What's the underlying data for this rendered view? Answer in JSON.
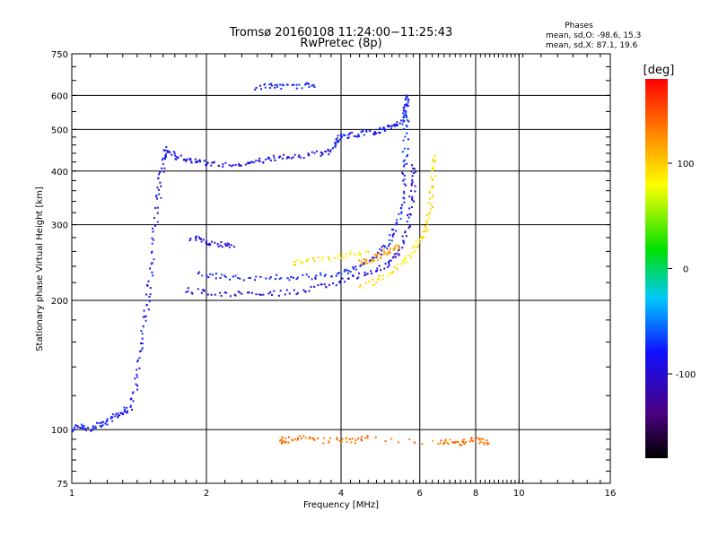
{
  "chart_data": {
    "type": "scatter",
    "title": "Tromsø 20160108 11:24:00−11:25:43",
    "subtitle": "RwPretec (8p)",
    "xlabel": "Frequency [MHz]",
    "ylabel": "Stationary phase Virtual Height [km]",
    "x_scale": "log",
    "y_scale": "log",
    "xlim": [
      1,
      16
    ],
    "ylim": [
      75,
      750
    ],
    "x_ticks": [
      1,
      2,
      4,
      6,
      8,
      10,
      16
    ],
    "x_tick_labels": [
      "1",
      "2",
      "4",
      "6",
      "8",
      "10",
      "16"
    ],
    "y_ticks": [
      75,
      100,
      200,
      300,
      400,
      500,
      600,
      750
    ],
    "y_tick_labels": [
      "75",
      "100",
      "200",
      "300",
      "400",
      "500",
      "600",
      "750"
    ],
    "grid": true,
    "phase_stats": {
      "heading": "Phases",
      "line_o": "mean, sd,O:  -98.6, 15.3",
      "line_x": "mean, sd,X:   87.1, 19.6"
    },
    "colorbar": {
      "unit_label": "[deg]",
      "range": [
        -180,
        180
      ],
      "tick_values": [
        100,
        0,
        -100
      ],
      "tick_labels": [
        "100",
        "0",
        "-100"
      ],
      "colormap": "rainbow (black → violet → blue → cyan → green → yellow → orange → red)"
    },
    "traces": [
      {
        "name": "",
        "phase": -100,
        "points": [
          [
            1.0,
            100
          ],
          [
            1.05,
            102
          ],
          [
            1.1,
            100
          ],
          [
            1.15,
            103
          ],
          [
            1.2,
            104
          ],
          [
            1.25,
            108
          ],
          [
            1.3,
            110
          ],
          [
            1.35,
            112
          ],
          [
            1.4,
            128
          ],
          [
            1.42,
            150
          ],
          [
            1.45,
            175
          ],
          [
            1.48,
            200
          ],
          [
            1.5,
            230
          ],
          [
            1.53,
            280
          ],
          [
            1.56,
            340
          ],
          [
            1.58,
            380
          ],
          [
            1.6,
            420
          ],
          [
            1.62,
            450
          ]
        ]
      },
      {
        "name": "",
        "phase": -108,
        "points": [
          [
            1.62,
            450
          ],
          [
            1.7,
            435
          ],
          [
            1.8,
            425
          ],
          [
            1.9,
            420
          ],
          [
            2.0,
            418
          ],
          [
            2.2,
            415
          ],
          [
            2.4,
            418
          ],
          [
            2.6,
            422
          ],
          [
            2.8,
            428
          ],
          [
            3.0,
            432
          ],
          [
            3.3,
            435
          ],
          [
            3.6,
            440
          ],
          [
            3.8,
            445
          ]
        ]
      },
      {
        "name": "",
        "phase": -100,
        "points": [
          [
            3.8,
            445
          ],
          [
            3.9,
            470
          ],
          [
            4.0,
            480
          ],
          [
            4.2,
            485
          ],
          [
            4.5,
            490
          ],
          [
            4.8,
            495
          ],
          [
            5.0,
            500
          ],
          [
            5.2,
            505
          ],
          [
            5.4,
            515
          ],
          [
            5.55,
            540
          ],
          [
            5.6,
            570
          ],
          [
            5.65,
            600
          ]
        ]
      },
      {
        "name": "",
        "phase": -95,
        "points": [
          [
            5.6,
            600
          ],
          [
            5.6,
            520
          ],
          [
            5.58,
            450
          ],
          [
            5.55,
            400
          ],
          [
            5.5,
            350
          ],
          [
            5.4,
            310
          ],
          [
            5.2,
            285
          ],
          [
            5.0,
            265
          ],
          [
            4.7,
            248
          ],
          [
            4.3,
            238
          ],
          [
            4.0,
            232
          ],
          [
            3.6,
            228
          ],
          [
            3.2,
            226
          ],
          [
            2.8,
            226
          ],
          [
            2.4,
            226
          ],
          [
            2.1,
            228
          ],
          [
            1.9,
            230
          ]
        ]
      },
      {
        "name": "",
        "phase": -110,
        "points": [
          [
            1.8,
            212
          ],
          [
            2.0,
            208
          ],
          [
            2.3,
            207
          ],
          [
            2.6,
            207
          ],
          [
            3.0,
            208
          ],
          [
            3.4,
            212
          ],
          [
            3.8,
            218
          ],
          [
            4.2,
            225
          ],
          [
            4.6,
            232
          ],
          [
            5.0,
            240
          ],
          [
            5.3,
            252
          ],
          [
            5.5,
            270
          ],
          [
            5.65,
            300
          ],
          [
            5.75,
            340
          ],
          [
            5.8,
            380
          ],
          [
            5.8,
            420
          ]
        ]
      },
      {
        "name": "",
        "phase": 95,
        "points": [
          [
            4.4,
            215
          ],
          [
            4.8,
            222
          ],
          [
            5.2,
            232
          ],
          [
            5.5,
            245
          ],
          [
            5.8,
            260
          ],
          [
            6.0,
            275
          ],
          [
            6.2,
            295
          ],
          [
            6.3,
            320
          ],
          [
            6.4,
            360
          ],
          [
            6.45,
            400
          ],
          [
            6.5,
            440
          ]
        ]
      },
      {
        "name": "",
        "phase": 120,
        "points": [
          [
            4.4,
            245
          ],
          [
            4.6,
            248
          ],
          [
            4.8,
            252
          ],
          [
            5.0,
            258
          ],
          [
            5.2,
            262
          ],
          [
            5.4,
            270
          ]
        ]
      },
      {
        "name": "",
        "phase": 90,
        "points": [
          [
            3.1,
            245
          ],
          [
            3.4,
            248
          ],
          [
            3.8,
            252
          ],
          [
            4.2,
            255
          ],
          [
            4.6,
            258
          ]
        ]
      },
      {
        "name": "",
        "phase": -110,
        "points": [
          [
            1.85,
            280
          ],
          [
            1.95,
            275
          ],
          [
            2.05,
            272
          ],
          [
            2.2,
            270
          ],
          [
            2.3,
            268
          ]
        ]
      },
      {
        "name": "",
        "phase": -100,
        "points": [
          [
            2.6,
            625
          ],
          [
            2.8,
            630
          ],
          [
            3.0,
            628
          ],
          [
            3.3,
            632
          ],
          [
            3.5,
            638
          ]
        ]
      },
      {
        "name": "",
        "phase": 140,
        "points": [
          [
            2.9,
            95
          ],
          [
            3.0,
            94
          ],
          [
            3.2,
            96
          ],
          [
            3.5,
            94
          ],
          [
            4.0,
            95
          ],
          [
            4.3,
            94
          ],
          [
            4.6,
            96
          ],
          [
            6.6,
            93
          ],
          [
            7.0,
            94
          ],
          [
            7.4,
            93
          ],
          [
            7.8,
            95
          ],
          [
            8.2,
            94
          ],
          [
            8.6,
            93
          ]
        ]
      }
    ]
  }
}
